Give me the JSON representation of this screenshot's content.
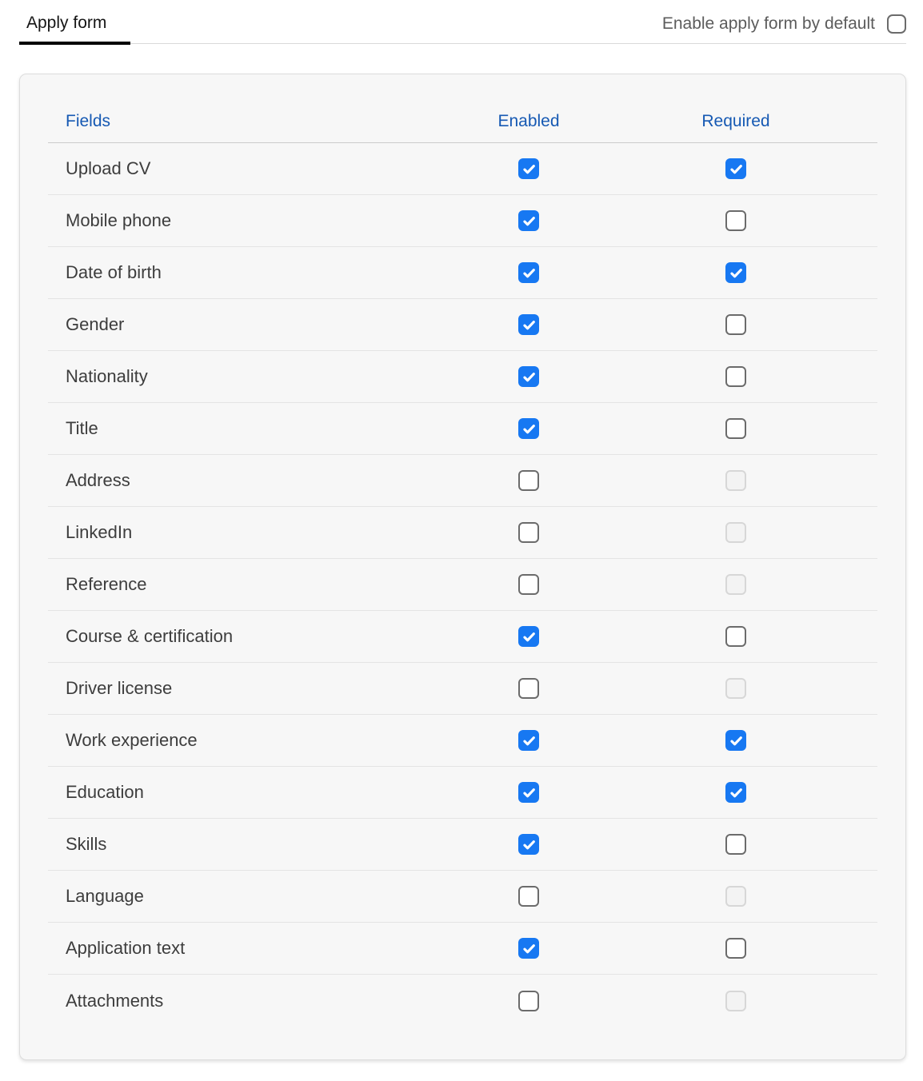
{
  "header": {
    "tab_label": "Apply form",
    "toggle_label": "Enable apply form by default",
    "toggle_state": "unchecked"
  },
  "table": {
    "columns": [
      "Fields",
      "Enabled",
      "Required"
    ],
    "rows": [
      {
        "label": "Upload CV",
        "enabled": "checked",
        "required": "checked"
      },
      {
        "label": "Mobile phone",
        "enabled": "checked",
        "required": "unchecked"
      },
      {
        "label": "Date of birth",
        "enabled": "checked",
        "required": "checked"
      },
      {
        "label": "Gender",
        "enabled": "checked",
        "required": "unchecked"
      },
      {
        "label": "Nationality",
        "enabled": "checked",
        "required": "unchecked"
      },
      {
        "label": "Title",
        "enabled": "checked",
        "required": "unchecked"
      },
      {
        "label": "Address",
        "enabled": "unchecked",
        "required": "disabled"
      },
      {
        "label": "LinkedIn",
        "enabled": "unchecked",
        "required": "disabled"
      },
      {
        "label": "Reference",
        "enabled": "unchecked",
        "required": "disabled"
      },
      {
        "label": "Course & certification",
        "enabled": "checked",
        "required": "unchecked"
      },
      {
        "label": "Driver license",
        "enabled": "unchecked",
        "required": "disabled"
      },
      {
        "label": "Work experience",
        "enabled": "checked",
        "required": "checked"
      },
      {
        "label": "Education",
        "enabled": "checked",
        "required": "checked"
      },
      {
        "label": "Skills",
        "enabled": "checked",
        "required": "unchecked"
      },
      {
        "label": "Language",
        "enabled": "unchecked",
        "required": "disabled"
      },
      {
        "label": "Application text",
        "enabled": "checked",
        "required": "unchecked"
      },
      {
        "label": "Attachments",
        "enabled": "unchecked",
        "required": "disabled"
      }
    ]
  },
  "colors": {
    "accent_blue": "#1778f2",
    "header_blue": "#1659b3",
    "checkmark": "#ffffff"
  }
}
